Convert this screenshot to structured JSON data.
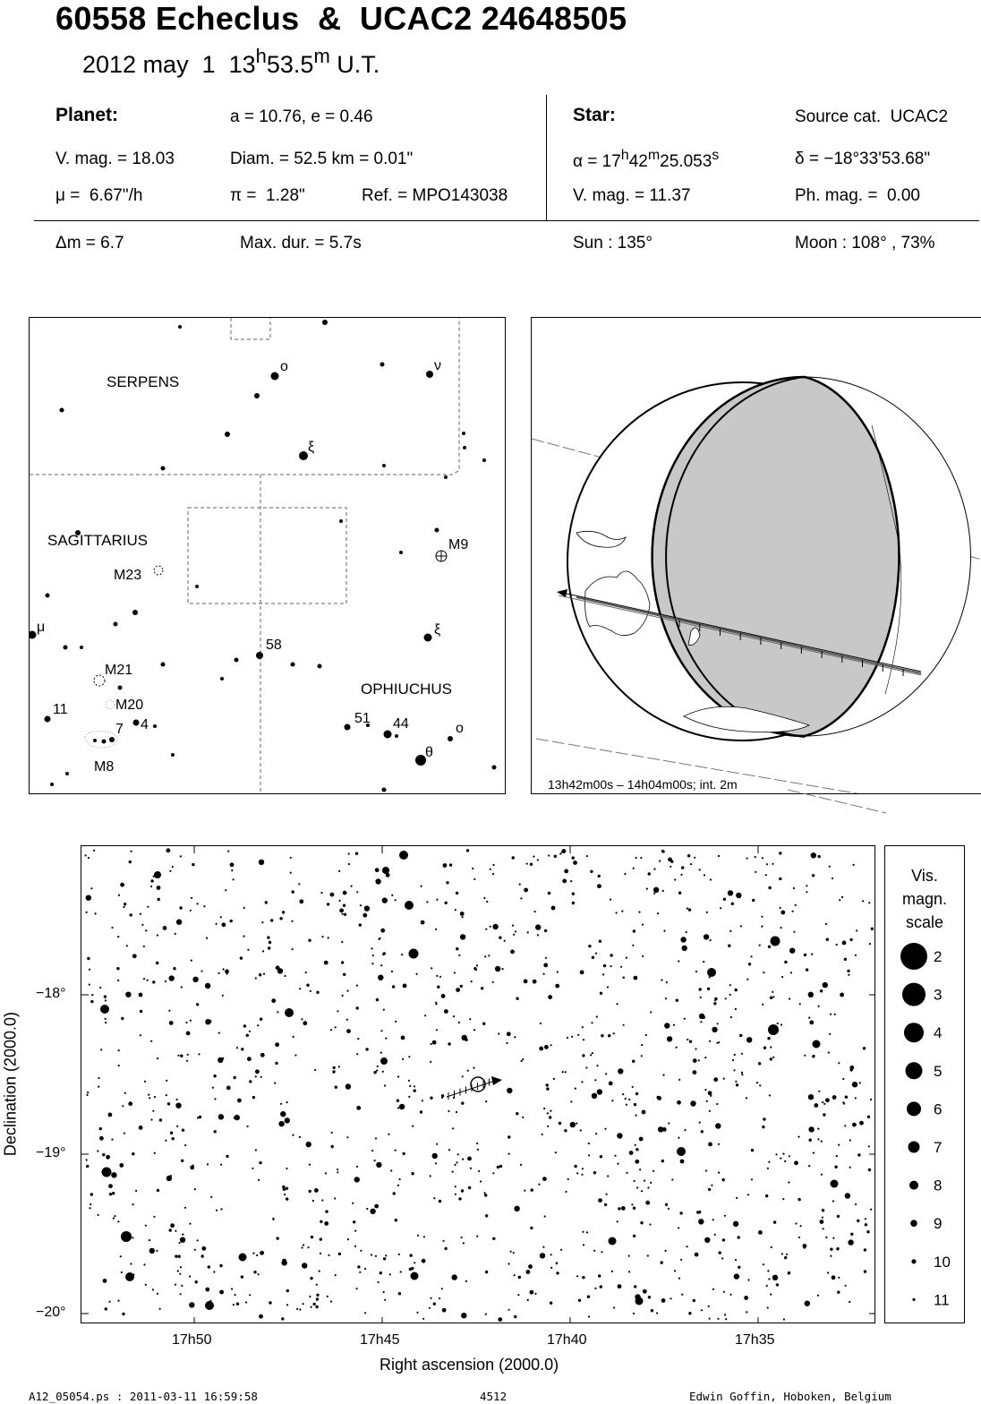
{
  "header": {
    "title": "60558 Echeclus  &  UCAC2 24648505",
    "date": "2012 may  1  13",
    "time_h_sup": "h",
    "time_min": "53.5",
    "time_m_sup": "m",
    "time_ut": " U.T."
  },
  "planet": {
    "heading": "Planet:",
    "orbit": "a = 10.76, e = 0.46",
    "vmag": "V. mag. = 18.03",
    "diam": "Diam. = 52.5 km = 0.01\"",
    "mu": "μ =  6.67\"/h",
    "pi": "π =  1.28\"",
    "ref": "Ref. = MPO143038"
  },
  "star": {
    "heading": "Star:",
    "source": "Source cat.  UCAC2",
    "alpha_prefix": "α = 17",
    "alpha_h": "h",
    "alpha_min": "42",
    "alpha_m": "m",
    "alpha_sec": "25.053",
    "alpha_s": "s",
    "delta": "δ = −18°33'53.68\"",
    "vmag": "V. mag. = 11.37",
    "phmag": "Ph. mag. =  0.00"
  },
  "event": {
    "dm": "Δm = 6.7",
    "maxdur": "Max. dur. = 5.7s",
    "sun": "Sun : 135°",
    "moon": "Moon : 108° , 73%"
  },
  "constellation_map": {
    "constellations": [
      "SERPENS",
      "SAGITTARIUS",
      "OPHIUCHUS"
    ],
    "labels": [
      "o",
      "ν",
      "ξ",
      "M9",
      "M23",
      "μ",
      "ξ",
      "58",
      "M21",
      "M20",
      "11",
      "7",
      "4",
      "51",
      "44",
      "o",
      "θ",
      "M8"
    ]
  },
  "globe": {
    "caption": "13h42m00s – 14h04m00s; int.  2m"
  },
  "star_chart": {
    "y_ticks": [
      "−18°",
      "−19°",
      "−20°"
    ],
    "x_ticks": [
      "17h50",
      "17h45",
      "17h40",
      "17h35"
    ],
    "xlabel": "Right ascension (2000.0)",
    "ylabel": "Declination (2000.0)"
  },
  "mag_scale": {
    "title_lines": [
      "Vis.",
      "magn.",
      "scale"
    ],
    "values": [
      "2",
      "3",
      "4",
      "5",
      "6",
      "7",
      "8",
      "9",
      "10",
      "11"
    ]
  },
  "footer": {
    "file": "A12_05054.ps : 2011-03-11 16:59:58",
    "number": "4512",
    "author": "Edwin Goffin, Hoboken, Belgium"
  }
}
